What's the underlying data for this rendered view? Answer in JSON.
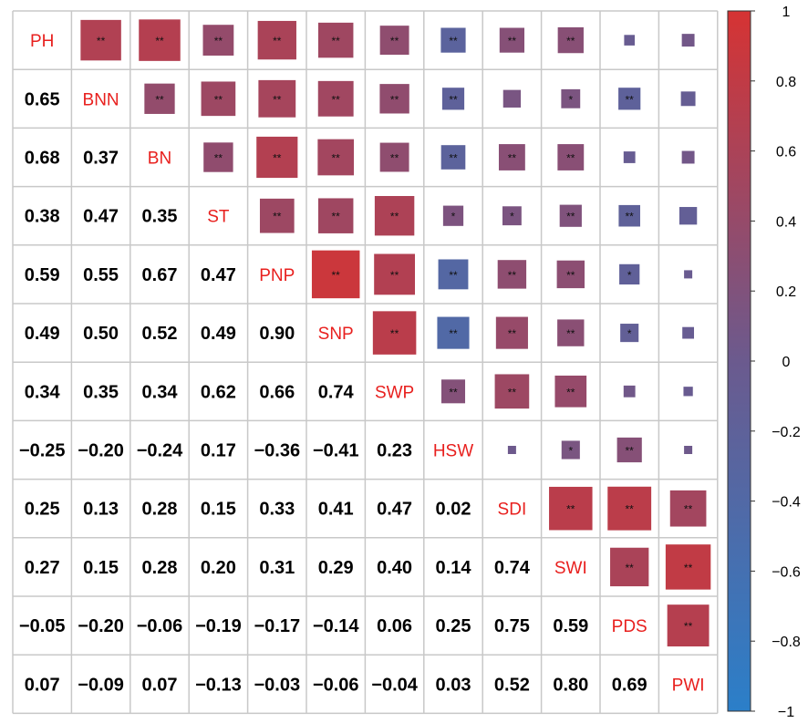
{
  "chart_data": {
    "type": "heatmap",
    "subtype": "correlation-matrix-mixed",
    "variables": [
      "PH",
      "BNN",
      "BN",
      "ST",
      "PNP",
      "SNP",
      "SWP",
      "HSW",
      "SDI",
      "SWI",
      "PDS",
      "PWI"
    ],
    "lower_triangle": "numbers",
    "upper_triangle": "squares sized and colored by correlation",
    "matrix": [
      [
        1,
        0.65,
        0.68,
        0.38,
        0.59,
        0.49,
        0.34,
        -0.25,
        0.25,
        0.27,
        -0.05,
        0.07
      ],
      [
        0.65,
        1,
        0.37,
        0.47,
        0.55,
        0.5,
        0.35,
        -0.2,
        0.13,
        0.15,
        -0.2,
        -0.09
      ],
      [
        0.68,
        0.37,
        1,
        0.35,
        0.67,
        0.52,
        0.34,
        -0.24,
        0.28,
        0.28,
        -0.06,
        0.07
      ],
      [
        0.38,
        0.47,
        0.35,
        1,
        0.47,
        0.49,
        0.62,
        0.17,
        0.15,
        0.2,
        -0.19,
        -0.13
      ],
      [
        0.59,
        0.55,
        0.67,
        0.47,
        1,
        0.9,
        0.66,
        -0.36,
        0.33,
        0.31,
        -0.17,
        -0.03
      ],
      [
        0.49,
        0.5,
        0.52,
        0.49,
        0.9,
        1,
        0.74,
        -0.41,
        0.41,
        0.29,
        -0.14,
        -0.06
      ],
      [
        0.34,
        0.35,
        0.34,
        0.62,
        0.66,
        0.74,
        1,
        0.23,
        0.47,
        0.4,
        0.06,
        -0.04
      ],
      [
        -0.25,
        -0.2,
        -0.24,
        0.17,
        -0.36,
        -0.41,
        0.23,
        1,
        0.02,
        0.14,
        0.25,
        0.03
      ],
      [
        0.25,
        0.13,
        0.28,
        0.15,
        0.33,
        0.41,
        0.47,
        0.02,
        1,
        0.74,
        0.75,
        0.52
      ],
      [
        0.27,
        0.15,
        0.28,
        0.2,
        0.31,
        0.29,
        0.4,
        0.14,
        0.74,
        1,
        0.59,
        0.8
      ],
      [
        -0.05,
        -0.2,
        -0.06,
        -0.19,
        -0.17,
        -0.14,
        0.06,
        0.25,
        0.75,
        0.59,
        1,
        0.69
      ],
      [
        0.07,
        -0.09,
        0.07,
        -0.13,
        -0.03,
        -0.06,
        -0.04,
        0.03,
        0.52,
        0.8,
        0.69,
        1
      ]
    ],
    "significance_upper": [
      [
        "",
        "**",
        "**",
        "**",
        "**",
        "**",
        "**",
        "**",
        "**",
        "**",
        "",
        ""
      ],
      [
        "",
        "",
        "**",
        "**",
        "**",
        "**",
        "**",
        "**",
        "",
        "*",
        "**",
        ""
      ],
      [
        "",
        "",
        "",
        "**",
        "**",
        "**",
        "**",
        "**",
        "**",
        "**",
        "",
        ""
      ],
      [
        "",
        "",
        "",
        "",
        "**",
        "**",
        "**",
        "*",
        "*",
        "**",
        "**",
        ""
      ],
      [
        "",
        "",
        "",
        "",
        "",
        "**",
        "**",
        "**",
        "**",
        "**",
        "*",
        ""
      ],
      [
        "",
        "",
        "",
        "",
        "",
        "",
        "**",
        "**",
        "**",
        "**",
        "*",
        ""
      ],
      [
        "",
        "",
        "",
        "",
        "",
        "",
        "",
        "**",
        "**",
        "**",
        "",
        ""
      ],
      [
        "",
        "",
        "",
        "",
        "",
        "",
        "",
        "",
        "",
        "*",
        "**",
        ""
      ],
      [
        "",
        "",
        "",
        "",
        "",
        "",
        "",
        "",
        "",
        "**",
        "**",
        "**"
      ],
      [
        "",
        "",
        "",
        "",
        "",
        "",
        "",
        "",
        "",
        "",
        "**",
        "**"
      ],
      [
        "",
        "",
        "",
        "",
        "",
        "",
        "",
        "",
        "",
        "",
        "",
        "**"
      ],
      [
        "",
        "",
        "",
        "",
        "",
        "",
        "",
        "",
        "",
        "",
        "",
        ""
      ]
    ],
    "colorbar": {
      "range": [
        -1,
        1
      ],
      "tick_values": [
        1,
        0.8,
        0.6,
        0.4,
        0.2,
        0,
        -0.2,
        -0.4,
        -0.6,
        -0.8,
        -1
      ],
      "tick_labels": [
        "1",
        "0.8",
        "0.6",
        "0.4",
        "0.2",
        "0",
        "−0.2",
        "−0.4",
        "−0.6",
        "−0.8",
        "−1"
      ],
      "colors": {
        "negative": "#2b7fc9",
        "zero": "#6b5a8e",
        "positive": "#d63333"
      }
    },
    "colors": {
      "label": "#e8201e",
      "grid": "#c8c8c8",
      "number": "#000000"
    },
    "grid": true,
    "legend": "right"
  }
}
